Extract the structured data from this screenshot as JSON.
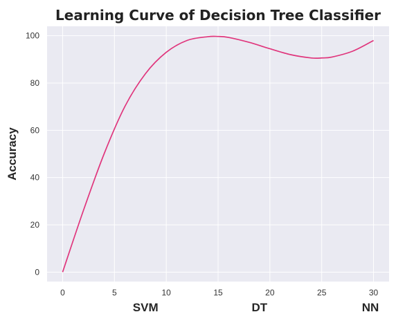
{
  "chart_data": {
    "type": "line",
    "title": "Learning Curve of Decision Tree Classifier",
    "ylabel": "Accuracy",
    "xlim": [
      -1.5,
      31.5
    ],
    "ylim": [
      -4,
      104
    ],
    "grid": true,
    "xticks": [
      0,
      5,
      10,
      15,
      20,
      25,
      30
    ],
    "yticks": [
      0,
      20,
      40,
      60,
      80,
      100
    ],
    "category_labels": [
      {
        "text": "SVM",
        "x": 8
      },
      {
        "text": "DT",
        "x": 19
      },
      {
        "text": "NN",
        "x": 29.7
      }
    ],
    "series": [
      {
        "color": "#e0357c",
        "x": [
          0,
          2,
          4,
          6,
          8,
          10,
          12,
          14,
          15,
          16,
          18,
          20,
          22,
          24,
          25,
          26,
          28,
          30
        ],
        "y": [
          0,
          26,
          50,
          70,
          84,
          93,
          98,
          99.6,
          99.7,
          99.3,
          97.2,
          94.5,
          92,
          90.6,
          90.6,
          91,
          93.5,
          98
        ]
      }
    ]
  },
  "style": {
    "plot_background": "#eaeaf2",
    "grid_color": "#ffffff",
    "line_color": "#e0357c"
  }
}
